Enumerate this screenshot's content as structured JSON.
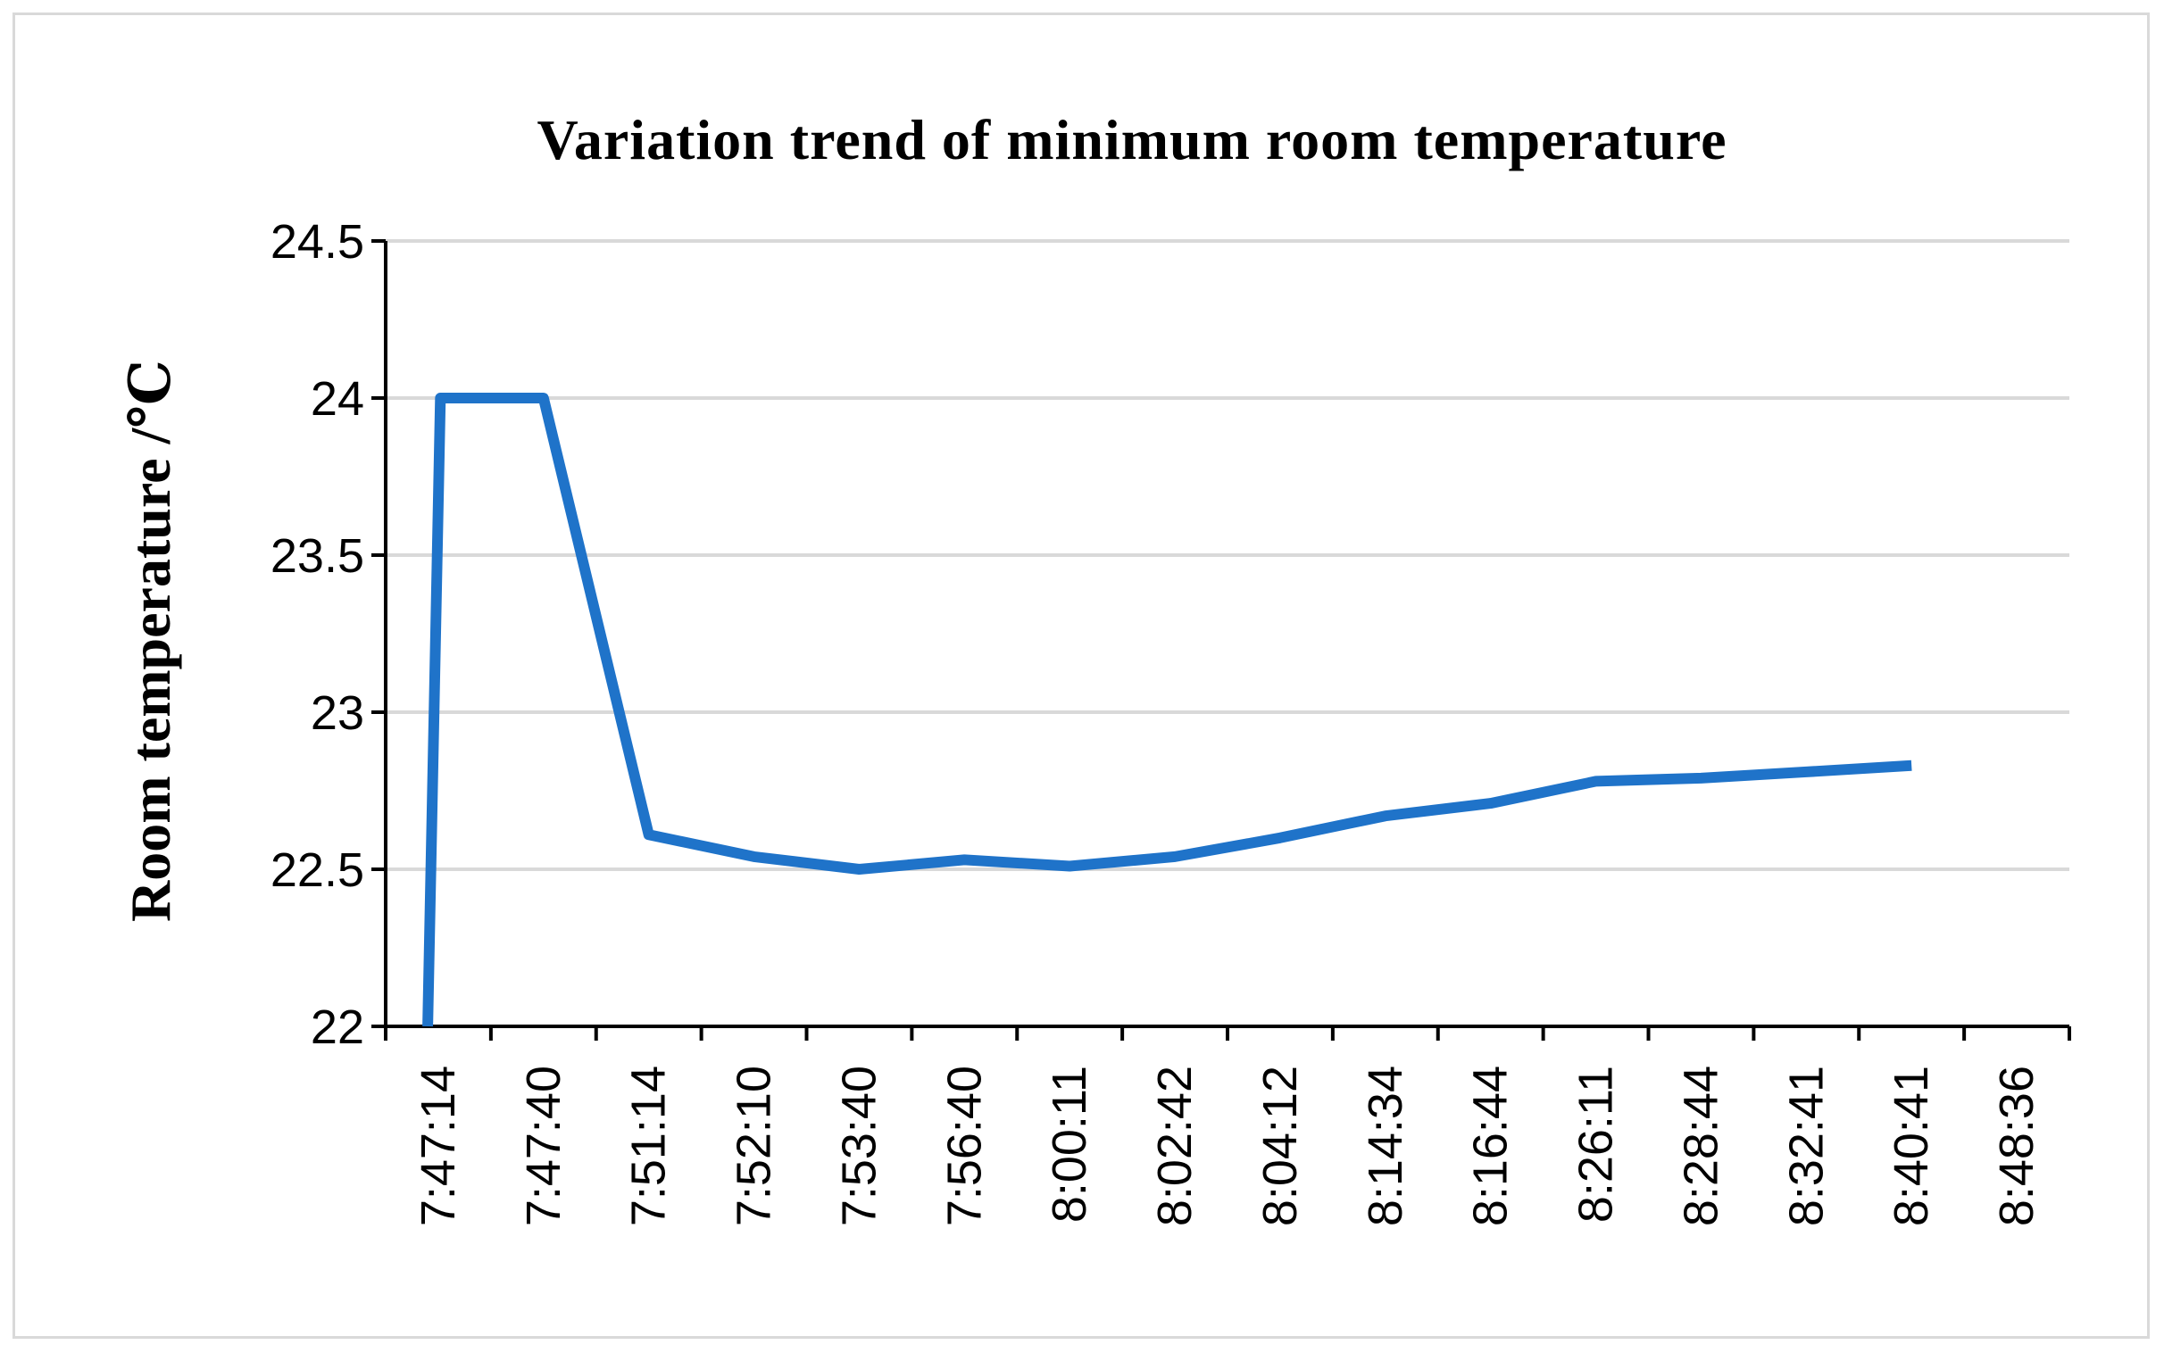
{
  "chart_data": {
    "type": "line",
    "title": "Variation trend of minimum room temperature",
    "xlabel": "",
    "ylabel": "Room temperature /℃",
    "categories": [
      "7:47:14",
      "7:47:40",
      "7:51:14",
      "7:52:10",
      "7:53:40",
      "7:56:40",
      "8:00:11",
      "8:02:42",
      "8:04:12",
      "8:14:34",
      "8:16:44",
      "8:26:11",
      "8:28:44",
      "8:32:41",
      "8:40:41",
      "8:48:36"
    ],
    "series": [
      {
        "values": [
          {
            "x": 0.4,
            "y": 22.0
          },
          {
            "x": 0.52,
            "y": 24.0
          },
          {
            "x": 1.5,
            "y": 24.0
          },
          {
            "x": 2.5,
            "y": 22.61
          },
          {
            "x": 3.5,
            "y": 22.54
          },
          {
            "x": 4.5,
            "y": 22.5
          },
          {
            "x": 5.5,
            "y": 22.53
          },
          {
            "x": 6.5,
            "y": 22.51
          },
          {
            "x": 7.5,
            "y": 22.54
          },
          {
            "x": 8.5,
            "y": 22.6
          },
          {
            "x": 9.5,
            "y": 22.67
          },
          {
            "x": 10.5,
            "y": 22.71
          },
          {
            "x": 11.5,
            "y": 22.78
          },
          {
            "x": 12.5,
            "y": 22.79
          },
          {
            "x": 13.5,
            "y": 22.81
          },
          {
            "x": 14.5,
            "y": 22.83
          }
        ]
      }
    ],
    "ylim": [
      22,
      24.5
    ],
    "yticks": [
      "22",
      "22.5",
      "23",
      "23.5",
      "24",
      "24.5"
    ],
    "grid": true,
    "legend": "none",
    "line_color": "#1f73c9",
    "grid_color": "#d9d9d9",
    "axis_color": "#000000"
  }
}
